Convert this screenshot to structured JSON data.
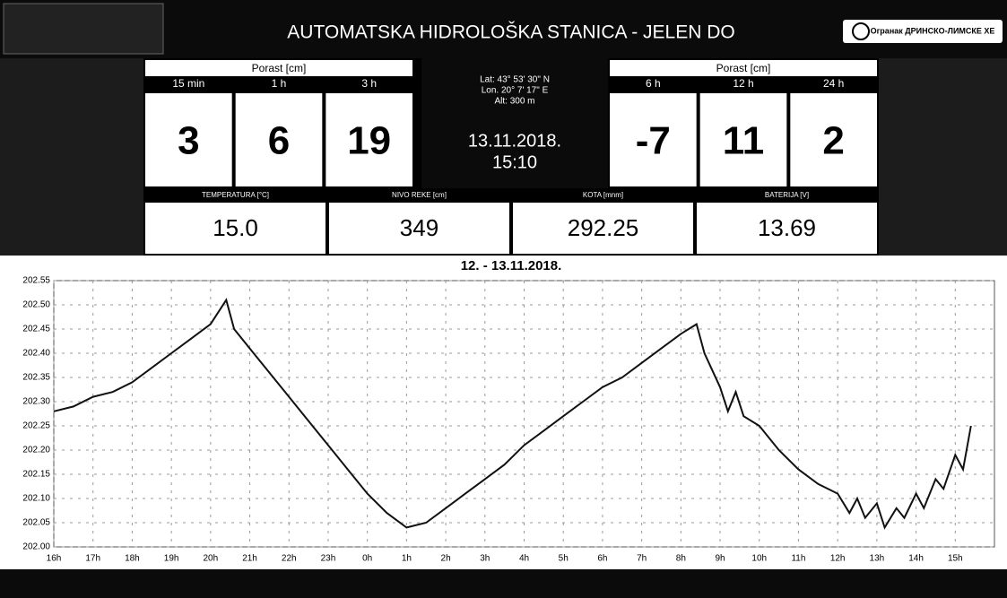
{
  "header": {
    "title": "AUTOMATSKA HIDROLOŠKA STANICA - JELEN DO",
    "logo_text": "Огранак ДРИНСКО-ЛИМСКЕ ХЕ"
  },
  "left_group": {
    "title": "Porast [cm]",
    "intervals": [
      "15 min",
      "1 h",
      "3 h"
    ],
    "values": [
      "3",
      "6",
      "19"
    ]
  },
  "right_group": {
    "title": "Porast [cm]",
    "intervals": [
      "6 h",
      "12 h",
      "24 h"
    ],
    "values": [
      "-7",
      "11",
      "2"
    ]
  },
  "location": {
    "lat": "Lat: 43° 53' 30\" N",
    "lon": "Lon. 20° 7' 17\" E",
    "alt": "Alt: 300 m",
    "date": "13.11.2018.",
    "time": "15:10"
  },
  "measurements": [
    {
      "label": "TEMPERATURA [°C]",
      "value": "15.0"
    },
    {
      "label": "NIVO REKE [cm]",
      "value": "349"
    },
    {
      "label": "KOTA [mnm]",
      "value": "292.25"
    },
    {
      "label": "BATERIJA [V]",
      "value": "13.69"
    }
  ],
  "chart_data": {
    "type": "line",
    "title": "12. - 13.11.2018.",
    "color": "#111111",
    "grid": true,
    "x": [
      0,
      0.5,
      1,
      1.5,
      2,
      2.5,
      3,
      3.5,
      4,
      4.4,
      4.6,
      5,
      5.5,
      6,
      6.5,
      7,
      7.5,
      8,
      8.5,
      9,
      9.5,
      10,
      10.5,
      11,
      11.5,
      12,
      12.5,
      13,
      13.5,
      14,
      14.5,
      15,
      15.5,
      16,
      16.4,
      16.6,
      17,
      17.2,
      17.4,
      17.6,
      18,
      18.5,
      19,
      19.5,
      20,
      20.3,
      20.5,
      20.7,
      21,
      21.2,
      21.5,
      21.7,
      22,
      22.2,
      22.5,
      22.7,
      23,
      23.2,
      23.4
    ],
    "values": [
      202.28,
      202.29,
      202.31,
      202.32,
      202.34,
      202.37,
      202.4,
      202.43,
      202.46,
      202.51,
      202.45,
      202.41,
      202.36,
      202.31,
      202.26,
      202.21,
      202.16,
      202.11,
      202.07,
      202.04,
      202.05,
      202.08,
      202.11,
      202.14,
      202.17,
      202.21,
      202.24,
      202.27,
      202.3,
      202.33,
      202.35,
      202.38,
      202.41,
      202.44,
      202.46,
      202.4,
      202.33,
      202.28,
      202.32,
      202.27,
      202.25,
      202.2,
      202.16,
      202.13,
      202.11,
      202.07,
      202.1,
      202.06,
      202.09,
      202.04,
      202.08,
      202.06,
      202.11,
      202.08,
      202.14,
      202.12,
      202.19,
      202.16,
      202.25
    ],
    "ylim": [
      202.0,
      202.55
    ],
    "yticks": [
      {
        "value": 202.0,
        "label": "202.00"
      },
      202.05,
      {
        "value": 202.1,
        "label": "202.10"
      },
      202.15,
      {
        "value": 202.2,
        "label": "202.20"
      },
      202.25,
      {
        "value": 202.3,
        "label": "202.30"
      },
      202.35,
      {
        "value": 202.4,
        "label": "202.40"
      },
      202.45,
      {
        "value": 202.5,
        "label": "202.50"
      },
      202.55
    ],
    "xlim": [
      0,
      24
    ],
    "xticks": [
      {
        "value": 0,
        "label": "16h"
      },
      {
        "value": 1,
        "label": "17h"
      },
      {
        "value": 2,
        "label": "18h"
      },
      {
        "value": 3,
        "label": "19h"
      },
      {
        "value": 4,
        "label": "20h"
      },
      {
        "value": 5,
        "label": "21h"
      },
      {
        "value": 6,
        "label": "22h"
      },
      {
        "value": 7,
        "label": "23h"
      },
      {
        "value": 8,
        "label": "0h"
      },
      {
        "value": 9,
        "label": "1h"
      },
      {
        "value": 10,
        "label": "2h"
      },
      {
        "value": 11,
        "label": "3h"
      },
      {
        "value": 12,
        "label": "4h"
      },
      {
        "value": 13,
        "label": "5h"
      },
      {
        "value": 14,
        "label": "6h"
      },
      {
        "value": 15,
        "label": "7h"
      },
      {
        "value": 16,
        "label": "8h"
      },
      {
        "value": 17,
        "label": "9h"
      },
      {
        "value": 18,
        "label": "10h"
      },
      {
        "value": 19,
        "label": "11h"
      },
      {
        "value": 20,
        "label": "12h"
      },
      {
        "value": 21,
        "label": "13h"
      },
      {
        "value": 22,
        "label": "14h"
      },
      {
        "value": 23,
        "label": "15h"
      }
    ]
  }
}
